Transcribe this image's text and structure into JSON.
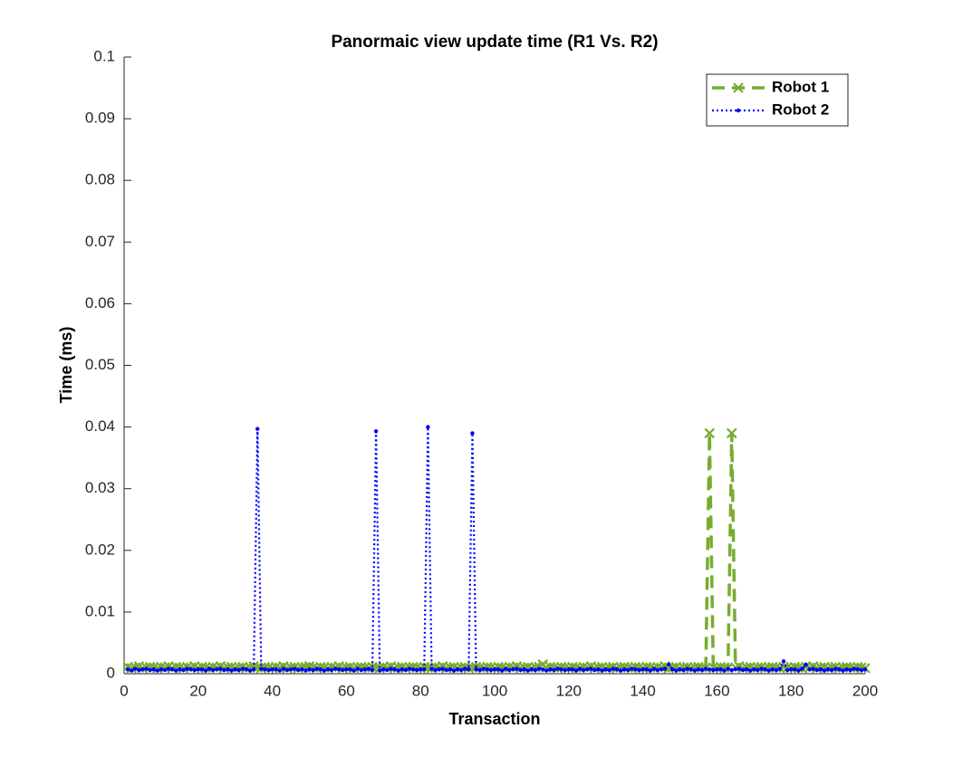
{
  "chart_data": {
    "type": "line",
    "title": "Panormaic view update time (R1 Vs. R2)",
    "xlabel": "Transaction",
    "ylabel": "Time (ms)",
    "x": [
      1,
      2,
      3,
      4,
      5,
      6,
      7,
      8,
      9,
      10,
      11,
      12,
      13,
      14,
      15,
      16,
      17,
      18,
      19,
      20,
      21,
      22,
      23,
      24,
      25,
      26,
      27,
      28,
      29,
      30,
      31,
      32,
      33,
      34,
      35,
      36,
      37,
      38,
      39,
      40,
      41,
      42,
      43,
      44,
      45,
      46,
      47,
      48,
      49,
      50,
      51,
      52,
      53,
      54,
      55,
      56,
      57,
      58,
      59,
      60,
      61,
      62,
      63,
      64,
      65,
      66,
      67,
      68,
      69,
      70,
      71,
      72,
      73,
      74,
      75,
      76,
      77,
      78,
      79,
      80,
      81,
      82,
      83,
      84,
      85,
      86,
      87,
      88,
      89,
      90,
      91,
      92,
      93,
      94,
      95,
      96,
      97,
      98,
      99,
      100,
      101,
      102,
      103,
      104,
      105,
      106,
      107,
      108,
      109,
      110,
      111,
      112,
      113,
      114,
      115,
      116,
      117,
      118,
      119,
      120,
      121,
      122,
      123,
      124,
      125,
      126,
      127,
      128,
      129,
      130,
      131,
      132,
      133,
      134,
      135,
      136,
      137,
      138,
      139,
      140,
      141,
      142,
      143,
      144,
      145,
      146,
      147,
      148,
      149,
      150,
      151,
      152,
      153,
      154,
      155,
      156,
      157,
      158,
      159,
      160,
      161,
      162,
      163,
      164,
      165,
      166,
      167,
      168,
      169,
      170,
      171,
      172,
      173,
      174,
      175,
      176,
      177,
      178,
      179,
      180,
      181,
      182,
      183,
      184,
      185,
      186,
      187,
      188,
      189,
      190,
      191,
      192,
      193,
      194,
      195,
      196,
      197,
      198,
      199,
      200
    ],
    "series": [
      {
        "name": "Robot 1",
        "color": "#77ac30",
        "line": "dashed",
        "marker": "x",
        "values": [
          0.0011,
          0.0009,
          0.001,
          0.0012,
          0.0009,
          0.001,
          0.0011,
          0.001,
          0.0009,
          0.0011,
          0.001,
          0.0012,
          0.0009,
          0.0011,
          0.001,
          0.0009,
          0.0011,
          0.001,
          0.0012,
          0.0009,
          0.0011,
          0.001,
          0.0009,
          0.0011,
          0.001,
          0.0012,
          0.0009,
          0.001,
          0.0011,
          0.0009,
          0.001,
          0.0011,
          0.0009,
          0.001,
          0.0012,
          0.001,
          0.0009,
          0.0011,
          0.001,
          0.0009,
          0.0011,
          0.001,
          0.0012,
          0.0009,
          0.001,
          0.0011,
          0.0009,
          0.001,
          0.0011,
          0.0012,
          0.001,
          0.0009,
          0.0011,
          0.001,
          0.0009,
          0.0011,
          0.001,
          0.0012,
          0.0009,
          0.001,
          0.0011,
          0.0009,
          0.001,
          0.0011,
          0.001,
          0.0009,
          0.0011,
          0.001,
          0.0009,
          0.0011,
          0.001,
          0.0012,
          0.0009,
          0.001,
          0.0011,
          0.0009,
          0.001,
          0.0011,
          0.001,
          0.0009,
          0.0011,
          0.001,
          0.0009,
          0.0011,
          0.001,
          0.0012,
          0.0009,
          0.001,
          0.0011,
          0.0009,
          0.001,
          0.0011,
          0.0009,
          0.001,
          0.0011,
          0.001,
          0.0009,
          0.0011,
          0.001,
          0.0009,
          0.0011,
          0.001,
          0.0009,
          0.0011,
          0.001,
          0.0012,
          0.0009,
          0.001,
          0.0011,
          0.0009,
          0.001,
          0.0011,
          0.0015,
          0.001,
          0.0011,
          0.001,
          0.0009,
          0.0011,
          0.001,
          0.0009,
          0.0011,
          0.001,
          0.0009,
          0.0011,
          0.001,
          0.0012,
          0.0009,
          0.001,
          0.0011,
          0.0009,
          0.001,
          0.0011,
          0.0009,
          0.001,
          0.0011,
          0.001,
          0.0009,
          0.0011,
          0.001,
          0.0009,
          0.0011,
          0.001,
          0.0009,
          0.0011,
          0.001,
          0.0012,
          0.0009,
          0.001,
          0.0011,
          0.0009,
          0.001,
          0.0011,
          0.0009,
          0.001,
          0.0011,
          0.001,
          0.0009,
          0.039,
          0.001,
          0.0009,
          0.0011,
          0.001,
          0.0009,
          0.039,
          0.001,
          0.0012,
          0.0009,
          0.001,
          0.0011,
          0.0009,
          0.001,
          0.0011,
          0.0009,
          0.001,
          0.0011,
          0.001,
          0.0009,
          0.0011,
          0.001,
          0.0009,
          0.0011,
          0.001,
          0.0009,
          0.0011,
          0.001,
          0.0012,
          0.0009,
          0.001,
          0.0011,
          0.0009,
          0.001,
          0.0011,
          0.0009,
          0.001,
          0.0011,
          0.001,
          0.0009,
          0.0011,
          0.001,
          0.0009
        ]
      },
      {
        "name": "Robot 2",
        "color": "#0000ff",
        "line": "dotted",
        "marker": "dot",
        "values": [
          0.0007,
          0.0005,
          0.0008,
          0.0006,
          0.0007,
          0.0008,
          0.0006,
          0.0007,
          0.0005,
          0.0007,
          0.0006,
          0.0008,
          0.0007,
          0.0005,
          0.0007,
          0.0006,
          0.0008,
          0.0007,
          0.0006,
          0.0007,
          0.0007,
          0.0005,
          0.0008,
          0.0006,
          0.0007,
          0.0008,
          0.0006,
          0.0007,
          0.0005,
          0.0007,
          0.0006,
          0.0008,
          0.0007,
          0.0005,
          0.0007,
          0.0397,
          0.0008,
          0.0007,
          0.0006,
          0.0007,
          0.0007,
          0.0005,
          0.0008,
          0.0006,
          0.0007,
          0.0008,
          0.0006,
          0.0007,
          0.0005,
          0.0007,
          0.0006,
          0.0008,
          0.0007,
          0.0005,
          0.0007,
          0.0006,
          0.0008,
          0.0007,
          0.0006,
          0.0007,
          0.0007,
          0.0005,
          0.0008,
          0.0006,
          0.0007,
          0.0008,
          0.0006,
          0.0393,
          0.0005,
          0.0007,
          0.0006,
          0.0008,
          0.0007,
          0.0005,
          0.0007,
          0.0006,
          0.0008,
          0.0007,
          0.0006,
          0.0007,
          0.0007,
          0.04,
          0.0008,
          0.0006,
          0.0007,
          0.0008,
          0.0006,
          0.0007,
          0.0005,
          0.0007,
          0.0006,
          0.0008,
          0.0007,
          0.039,
          0.0007,
          0.0006,
          0.0008,
          0.0007,
          0.0006,
          0.0007,
          0.0007,
          0.0005,
          0.0008,
          0.0006,
          0.0007,
          0.0008,
          0.0006,
          0.0007,
          0.0005,
          0.0007,
          0.0006,
          0.0008,
          0.0007,
          0.0005,
          0.0007,
          0.0006,
          0.0008,
          0.0007,
          0.0006,
          0.0007,
          0.0007,
          0.0005,
          0.0008,
          0.0006,
          0.0007,
          0.0008,
          0.0006,
          0.0007,
          0.0005,
          0.0007,
          0.0006,
          0.0008,
          0.0007,
          0.0005,
          0.0007,
          0.0006,
          0.0008,
          0.0007,
          0.0006,
          0.0007,
          0.0007,
          0.0005,
          0.0008,
          0.0006,
          0.0007,
          0.0008,
          0.0015,
          0.0007,
          0.0005,
          0.0007,
          0.0006,
          0.0008,
          0.0007,
          0.0005,
          0.0007,
          0.0006,
          0.0008,
          0.0007,
          0.0006,
          0.0007,
          0.0007,
          0.0005,
          0.0008,
          0.0006,
          0.0007,
          0.0008,
          0.0006,
          0.0007,
          0.0005,
          0.0007,
          0.0006,
          0.0008,
          0.0007,
          0.0005,
          0.0007,
          0.0006,
          0.0008,
          0.002,
          0.0006,
          0.0007,
          0.0007,
          0.0005,
          0.0008,
          0.0015,
          0.0007,
          0.0008,
          0.0006,
          0.0007,
          0.0005,
          0.0007,
          0.0006,
          0.0008,
          0.0007,
          0.0005,
          0.0007,
          0.0006,
          0.0008,
          0.0007,
          0.0006,
          0.0007
        ]
      }
    ],
    "xlim": [
      0,
      200
    ],
    "xticks": [
      0,
      20,
      40,
      60,
      80,
      100,
      120,
      140,
      160,
      180,
      200
    ],
    "ylim": [
      0,
      0.1
    ],
    "yticks": [
      0,
      0.01,
      0.02,
      0.03,
      0.04,
      0.05,
      0.06,
      0.07,
      0.08,
      0.09,
      0.1
    ],
    "grid": false,
    "legend": "northeast"
  }
}
